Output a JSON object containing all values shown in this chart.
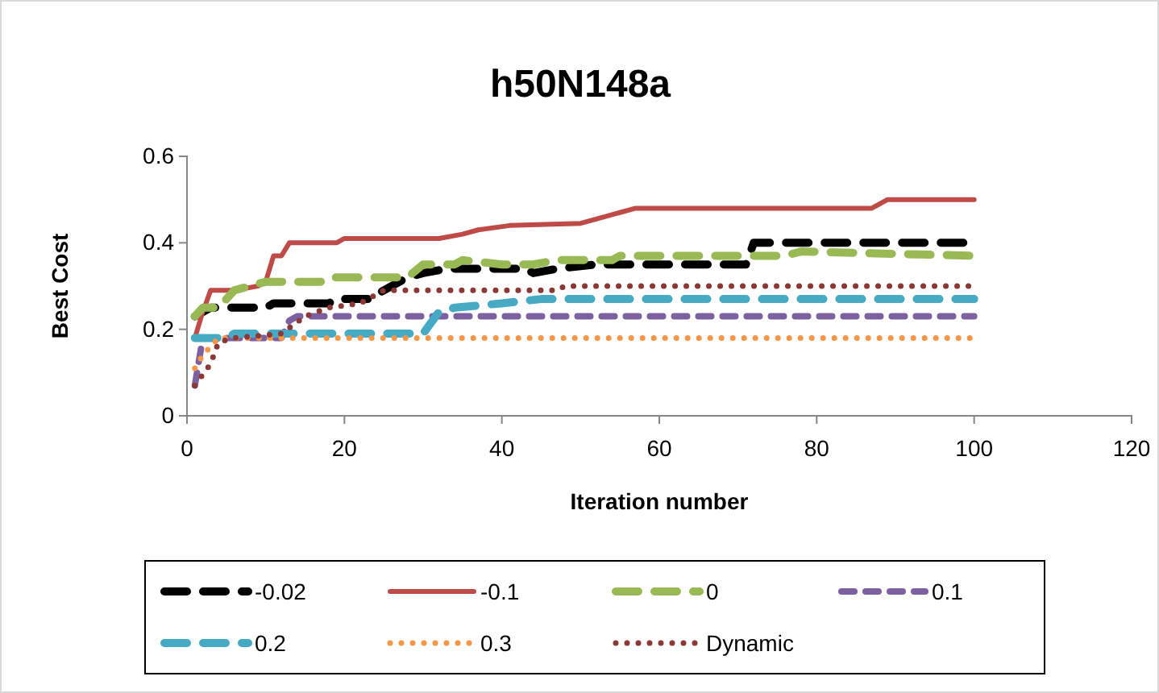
{
  "chart_data": {
    "type": "line",
    "title": "h50N148a",
    "xlabel": "Iteration number",
    "ylabel": "Best Cost",
    "xlim": [
      0,
      120
    ],
    "xticks": [
      0,
      20,
      40,
      60,
      80,
      100,
      120
    ],
    "ylim": [
      0,
      0.6
    ],
    "yticks": [
      0,
      0.2,
      0.4,
      0.6
    ],
    "legend": "bottom",
    "marker": "none",
    "series": [
      {
        "name": "-0.02",
        "color": "#000000",
        "line_style": "longdash",
        "x": [
          1,
          3,
          5,
          10,
          11,
          15,
          18,
          19,
          23,
          27,
          28,
          30,
          33,
          43,
          44,
          47,
          52,
          71,
          72,
          100
        ],
        "values": [
          0.23,
          0.25,
          0.25,
          0.25,
          0.26,
          0.26,
          0.26,
          0.27,
          0.27,
          0.31,
          0.32,
          0.33,
          0.34,
          0.34,
          0.33,
          0.34,
          0.35,
          0.35,
          0.4,
          0.4
        ]
      },
      {
        "name": "-0.1",
        "color": "#be4b48",
        "line_style": "solid",
        "x": [
          1,
          2,
          3,
          6,
          9,
          10,
          11,
          12,
          13,
          19,
          20,
          32,
          35,
          37,
          41,
          50,
          53,
          55,
          57,
          87,
          89,
          100
        ],
        "values": [
          0.18,
          0.24,
          0.29,
          0.29,
          0.3,
          0.31,
          0.37,
          0.37,
          0.4,
          0.4,
          0.41,
          0.41,
          0.42,
          0.43,
          0.44,
          0.445,
          0.46,
          0.47,
          0.48,
          0.48,
          0.5,
          0.5
        ]
      },
      {
        "name": "0",
        "color": "#98b954",
        "line_style": "longdash",
        "x": [
          1,
          2,
          4,
          6,
          10,
          17,
          18,
          28,
          30,
          34,
          35,
          40,
          44,
          47,
          54,
          55,
          76,
          78,
          100
        ],
        "values": [
          0.23,
          0.25,
          0.25,
          0.29,
          0.31,
          0.31,
          0.32,
          0.32,
          0.35,
          0.35,
          0.36,
          0.35,
          0.35,
          0.36,
          0.36,
          0.37,
          0.37,
          0.38,
          0.37
        ]
      },
      {
        "name": "0.1",
        "color": "#7d60a0",
        "line_style": "dashed",
        "x": [
          1,
          2,
          12,
          13,
          14,
          100
        ],
        "values": [
          0.07,
          0.18,
          0.18,
          0.22,
          0.23,
          0.23
        ]
      },
      {
        "name": "0.2",
        "color": "#46aac5",
        "line_style": "longdash",
        "x": [
          1,
          5,
          6,
          30,
          32,
          34,
          40,
          45,
          100
        ],
        "values": [
          0.18,
          0.18,
          0.19,
          0.19,
          0.24,
          0.25,
          0.26,
          0.27,
          0.27
        ]
      },
      {
        "name": "0.3",
        "color": "#f79646",
        "line_style": "dotted",
        "x": [
          1,
          2,
          4,
          100
        ],
        "values": [
          0.11,
          0.14,
          0.18,
          0.18
        ]
      },
      {
        "name": "Dynamic",
        "color": "#8c3836",
        "line_style": "dotted",
        "x": [
          1,
          3,
          4,
          6,
          12,
          15,
          18,
          22,
          25,
          47,
          48,
          100
        ],
        "values": [
          0.07,
          0.12,
          0.17,
          0.18,
          0.19,
          0.23,
          0.25,
          0.26,
          0.29,
          0.29,
          0.3,
          0.3
        ]
      }
    ]
  }
}
